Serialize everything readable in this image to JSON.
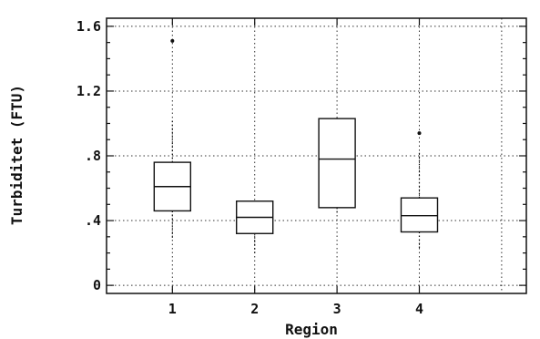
{
  "chart_data": {
    "type": "boxplot",
    "title": "",
    "xlabel": "Region",
    "ylabel": "Turbiditet (FTU)",
    "ylim": [
      -0.05,
      1.65
    ],
    "xlim": [
      0.2,
      5.3
    ],
    "y_ticks": [
      0,
      0.4,
      0.8,
      1.2,
      1.6
    ],
    "y_tick_labels": [
      "0",
      ".4",
      ".8",
      "1.2",
      "1.6"
    ],
    "x_ticks": [
      1,
      2,
      3,
      4
    ],
    "x_tick_labels": [
      "1",
      "2",
      "3",
      "4"
    ],
    "grid": true,
    "categories": [
      "1",
      "2",
      "3",
      "4"
    ],
    "boxes": [
      {
        "category": "1",
        "min": 0.28,
        "q1": 0.46,
        "median": 0.61,
        "q3": 0.76,
        "max": 1.02,
        "outliers": [
          1.51
        ]
      },
      {
        "category": "2",
        "min": 0.2,
        "q1": 0.32,
        "median": 0.42,
        "q3": 0.52,
        "max": 0.52,
        "outliers": []
      },
      {
        "category": "3",
        "min": 0.44,
        "q1": 0.48,
        "median": 0.78,
        "q3": 1.03,
        "max": 1.03,
        "outliers": []
      },
      {
        "category": "4",
        "min": 0.22,
        "q1": 0.33,
        "median": 0.43,
        "q3": 0.54,
        "max": 0.83,
        "outliers": [
          0.94
        ]
      }
    ]
  }
}
